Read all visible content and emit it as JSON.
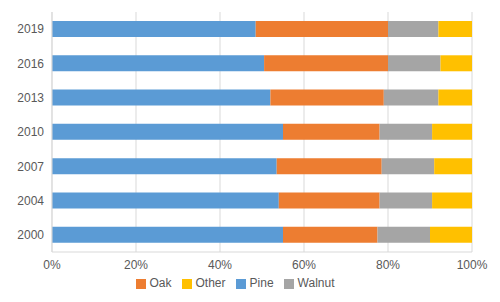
{
  "chart_data": {
    "type": "bar",
    "orientation": "horizontal",
    "stacked": true,
    "grid": true,
    "legend": "bottom",
    "categories": [
      "2019",
      "2016",
      "2013",
      "2010",
      "2007",
      "2004",
      "2000"
    ],
    "series": [
      {
        "name": "Pine",
        "color": "#5b9bd5",
        "values": [
          48.5,
          50.5,
          52,
          55,
          53.5,
          54,
          55
        ]
      },
      {
        "name": "Oak",
        "color": "#ed7d31",
        "values": [
          31.5,
          29.5,
          27,
          23,
          25,
          24,
          22.5
        ]
      },
      {
        "name": "Walnut",
        "color": "#a5a5a5",
        "values": [
          12,
          12.5,
          13,
          12.5,
          12.5,
          12.5,
          12.5
        ]
      },
      {
        "name": "Other",
        "color": "#ffc000",
        "values": [
          8,
          7.5,
          8,
          9.5,
          9,
          9.5,
          10
        ]
      }
    ],
    "xlim": [
      0,
      100
    ],
    "xticks": [
      {
        "value": 0,
        "label": "0%"
      },
      {
        "value": 20,
        "label": "20%"
      },
      {
        "value": 40,
        "label": "40%"
      },
      {
        "value": 60,
        "label": "60%"
      },
      {
        "value": 80,
        "label": "80%"
      },
      {
        "value": 100,
        "label": "100%"
      }
    ]
  }
}
